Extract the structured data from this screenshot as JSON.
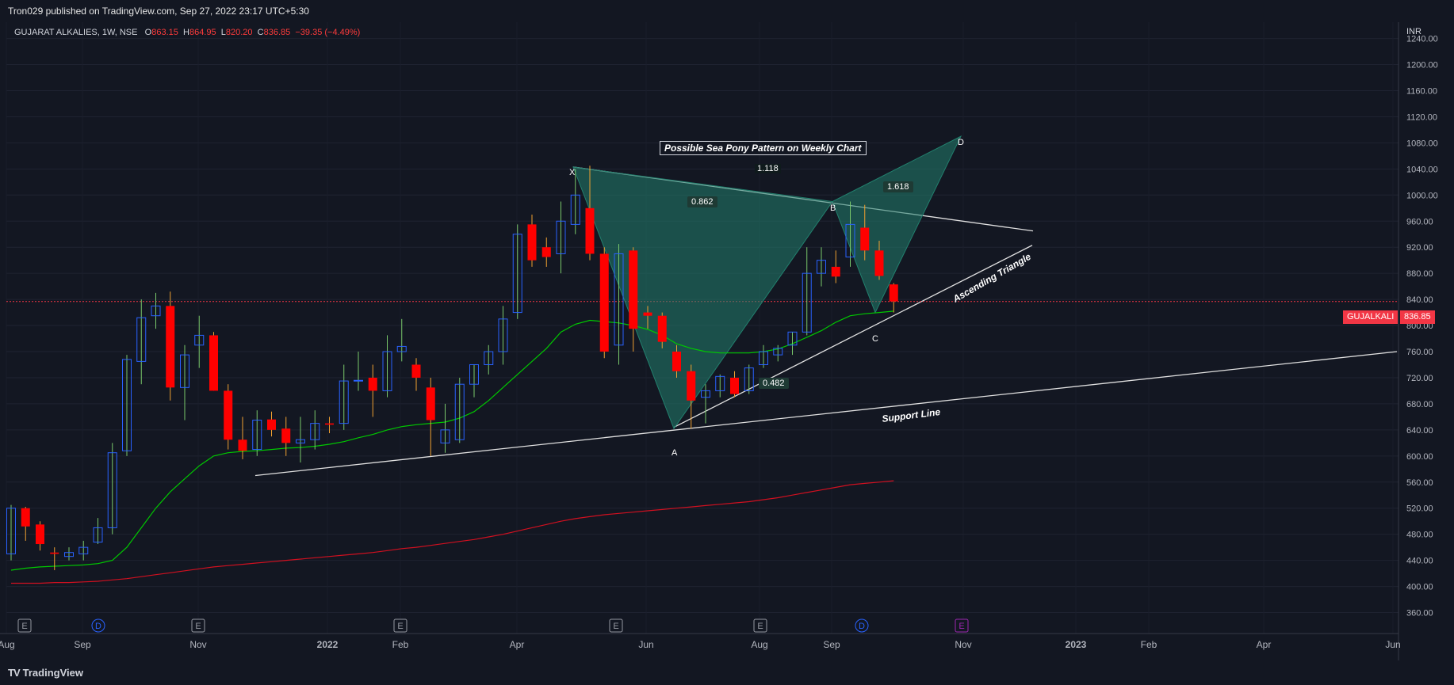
{
  "header": {
    "published": "Tron029 published on TradingView.com, Sep 27, 2022 23:17 UTC+5:30"
  },
  "symbol": {
    "name": "GUJARAT ALKALIES, 1W, NSE",
    "o_label": "O",
    "o_value": "863.15",
    "h_label": "H",
    "h_value": "864.95",
    "l_label": "L",
    "l_value": "820.20",
    "c_label": "C",
    "c_value": "836.85",
    "change": "−39.35 (−4.49%)"
  },
  "currency": "INR",
  "price_tag": {
    "ticker": "GUJALKALI",
    "price": "836.85"
  },
  "footer": {
    "brand": "TradingView"
  },
  "annotations": {
    "title": "Possible Sea Pony Pattern on Weekly Chart",
    "ratio_1118": "1.118",
    "ratio_0862": "0.862",
    "ratio_1618": "1.618",
    "ratio_0482": "0.482",
    "point_x": "X",
    "point_a": "A",
    "point_b": "B",
    "point_c": "C",
    "point_d": "D",
    "ascending_triangle": "Ascending Triangle",
    "support_line": "Support Line"
  },
  "event_markers": [
    "E",
    "D",
    "E",
    "E",
    "E",
    "E",
    "D",
    "E"
  ],
  "colors": {
    "background": "#131722",
    "up": "#2962ff",
    "down": "#ff0000",
    "ma_fast": "#00c800",
    "ma_slow": "#d01020",
    "pattern": "#22806e",
    "price_line": "#f23645"
  },
  "chart_data": {
    "type": "candlestick",
    "title": "GUJARAT ALKALIES, 1W, NSE",
    "y_axis": {
      "ticks": [
        360,
        400,
        440,
        480,
        520,
        560,
        600,
        640,
        680,
        720,
        760,
        800,
        840,
        880,
        920,
        960,
        1000,
        1040,
        1080,
        1120,
        1160,
        1200,
        1240
      ],
      "ylim": [
        340,
        1265
      ],
      "position": "right"
    },
    "x_axis": {
      "labels": [
        "Aug",
        "Sep",
        "Nov",
        "2022",
        "Feb",
        "Apr",
        "Jun",
        "Aug",
        "Sep",
        "Nov",
        "2023",
        "Feb",
        "Apr",
        "Jun"
      ]
    },
    "candles": [
      {
        "o": 450,
        "h": 525,
        "l": 440,
        "c": 520
      },
      {
        "o": 520,
        "h": 522,
        "l": 470,
        "c": 492
      },
      {
        "o": 495,
        "h": 500,
        "l": 455,
        "c": 465
      },
      {
        "o": 452,
        "h": 460,
        "l": 425,
        "c": 450
      },
      {
        "o": 446,
        "h": 460,
        "l": 440,
        "c": 452
      },
      {
        "o": 450,
        "h": 470,
        "l": 440,
        "c": 460
      },
      {
        "o": 468,
        "h": 505,
        "l": 465,
        "c": 490
      },
      {
        "o": 490,
        "h": 620,
        "l": 480,
        "c": 605
      },
      {
        "o": 608,
        "h": 755,
        "l": 600,
        "c": 748
      },
      {
        "o": 745,
        "h": 840,
        "l": 710,
        "c": 812
      },
      {
        "o": 815,
        "h": 850,
        "l": 795,
        "c": 830
      },
      {
        "o": 830,
        "h": 852,
        "l": 685,
        "c": 705
      },
      {
        "o": 705,
        "h": 770,
        "l": 655,
        "c": 755
      },
      {
        "o": 770,
        "h": 815,
        "l": 735,
        "c": 785
      },
      {
        "o": 785,
        "h": 790,
        "l": 700,
        "c": 700
      },
      {
        "o": 700,
        "h": 710,
        "l": 610,
        "c": 625
      },
      {
        "o": 625,
        "h": 660,
        "l": 595,
        "c": 608
      },
      {
        "o": 610,
        "h": 670,
        "l": 600,
        "c": 655
      },
      {
        "o": 656,
        "h": 668,
        "l": 630,
        "c": 640
      },
      {
        "o": 642,
        "h": 660,
        "l": 600,
        "c": 620
      },
      {
        "o": 620,
        "h": 660,
        "l": 590,
        "c": 625
      },
      {
        "o": 625,
        "h": 670,
        "l": 610,
        "c": 650
      },
      {
        "o": 650,
        "h": 660,
        "l": 635,
        "c": 648
      },
      {
        "o": 650,
        "h": 740,
        "l": 640,
        "c": 715
      },
      {
        "o": 715,
        "h": 760,
        "l": 700,
        "c": 716
      },
      {
        "o": 720,
        "h": 740,
        "l": 660,
        "c": 700
      },
      {
        "o": 700,
        "h": 785,
        "l": 690,
        "c": 760
      },
      {
        "o": 760,
        "h": 810,
        "l": 745,
        "c": 768
      },
      {
        "o": 740,
        "h": 750,
        "l": 700,
        "c": 720
      },
      {
        "o": 705,
        "h": 720,
        "l": 600,
        "c": 655
      },
      {
        "o": 620,
        "h": 680,
        "l": 605,
        "c": 640
      },
      {
        "o": 625,
        "h": 720,
        "l": 620,
        "c": 710
      },
      {
        "o": 710,
        "h": 740,
        "l": 690,
        "c": 740
      },
      {
        "o": 740,
        "h": 770,
        "l": 725,
        "c": 760
      },
      {
        "o": 760,
        "h": 830,
        "l": 740,
        "c": 810
      },
      {
        "o": 820,
        "h": 955,
        "l": 810,
        "c": 940
      },
      {
        "o": 955,
        "h": 970,
        "l": 890,
        "c": 900
      },
      {
        "o": 920,
        "h": 935,
        "l": 890,
        "c": 905
      },
      {
        "o": 910,
        "h": 990,
        "l": 880,
        "c": 960
      },
      {
        "o": 955,
        "h": 1040,
        "l": 940,
        "c": 1000
      },
      {
        "o": 980,
        "h": 1045,
        "l": 900,
        "c": 910
      },
      {
        "o": 910,
        "h": 920,
        "l": 750,
        "c": 760
      },
      {
        "o": 770,
        "h": 925,
        "l": 740,
        "c": 910
      },
      {
        "o": 915,
        "h": 920,
        "l": 760,
        "c": 795
      },
      {
        "o": 820,
        "h": 830,
        "l": 795,
        "c": 815
      },
      {
        "o": 815,
        "h": 820,
        "l": 765,
        "c": 775
      },
      {
        "o": 760,
        "h": 770,
        "l": 720,
        "c": 730
      },
      {
        "o": 730,
        "h": 740,
        "l": 642,
        "c": 685
      },
      {
        "o": 690,
        "h": 710,
        "l": 650,
        "c": 700
      },
      {
        "o": 700,
        "h": 725,
        "l": 690,
        "c": 722
      },
      {
        "o": 720,
        "h": 730,
        "l": 690,
        "c": 695
      },
      {
        "o": 700,
        "h": 740,
        "l": 695,
        "c": 735
      },
      {
        "o": 740,
        "h": 770,
        "l": 735,
        "c": 760
      },
      {
        "o": 755,
        "h": 770,
        "l": 745,
        "c": 765
      },
      {
        "o": 770,
        "h": 790,
        "l": 755,
        "c": 790
      },
      {
        "o": 790,
        "h": 920,
        "l": 785,
        "c": 880
      },
      {
        "o": 880,
        "h": 920,
        "l": 860,
        "c": 900
      },
      {
        "o": 890,
        "h": 915,
        "l": 865,
        "c": 875
      },
      {
        "o": 905,
        "h": 990,
        "l": 890,
        "c": 955
      },
      {
        "o": 950,
        "h": 985,
        "l": 900,
        "c": 915
      },
      {
        "o": 915,
        "h": 930,
        "l": 870,
        "c": 876
      },
      {
        "o": 863,
        "h": 865,
        "l": 820,
        "c": 837
      }
    ],
    "ma_fast": [
      425,
      428,
      430,
      431,
      432,
      433,
      435,
      440,
      460,
      490,
      520,
      545,
      565,
      585,
      600,
      605,
      607,
      608,
      610,
      612,
      613,
      615,
      618,
      622,
      628,
      633,
      640,
      645,
      648,
      650,
      652,
      658,
      668,
      685,
      705,
      725,
      745,
      765,
      790,
      802,
      808,
      806,
      804,
      800,
      794,
      785,
      772,
      765,
      760,
      758,
      758,
      758,
      760,
      764,
      772,
      782,
      792,
      805,
      815,
      818,
      820,
      822
    ],
    "ma_slow": [
      405,
      405,
      405,
      406,
      406,
      407,
      408,
      410,
      412,
      415,
      418,
      421,
      424,
      427,
      430,
      432,
      434,
      436,
      438,
      440,
      442,
      444,
      446,
      448,
      450,
      452,
      455,
      458,
      460,
      463,
      466,
      469,
      472,
      476,
      480,
      485,
      490,
      495,
      500,
      504,
      507,
      510,
      512,
      514,
      516,
      518,
      520,
      522,
      524,
      526,
      528,
      530,
      533,
      536,
      540,
      544,
      548,
      552,
      556,
      558,
      560,
      562
    ],
    "levels": {
      "last_price": 836.85
    },
    "patterns": {
      "harmonic": {
        "X": 1043,
        "A": 642,
        "B": 990,
        "C": 820,
        "D": 1090
      }
    }
  }
}
